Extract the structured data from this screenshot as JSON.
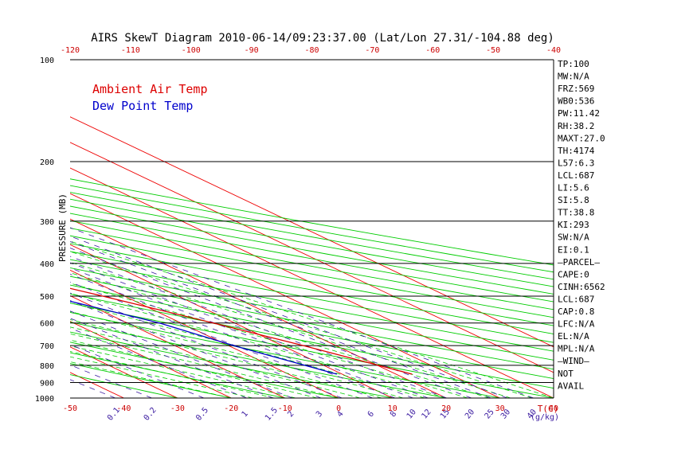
{
  "chart_data": {
    "type": "line",
    "title": "AIRS SkewT Diagram 2010-06-14/09:23:37.00 (Lat/Lon 27.31/-104.88 deg)",
    "ylabel": "PRESSURE (MB)",
    "xlabel": "T(C)",
    "mixing_ratio_unit": "(g/kg)",
    "y_scale": "log",
    "ylim": [
      1000,
      100
    ],
    "xlim_bottom": [
      -50,
      40
    ],
    "top_ticks": [
      -120,
      -110,
      -100,
      -90,
      -80,
      -70,
      -60,
      -50,
      -40
    ],
    "bottom_ticks": [
      -50,
      -40,
      -30,
      -20,
      -10,
      0,
      10,
      20,
      30,
      40
    ],
    "pressure_ticks": [
      100,
      200,
      300,
      400,
      500,
      600,
      700,
      800,
      900,
      1000
    ],
    "mixing_ratio_labels": [
      "0.1",
      "0.2",
      "0.5",
      "1",
      "1.5",
      "2",
      "3",
      "4",
      "6",
      "8",
      "10",
      "12",
      "15",
      "20",
      "25",
      "30",
      "40"
    ],
    "legend": [
      "Ambient Air Temp",
      "Dew Point Temp"
    ],
    "legend_placement": "top-left",
    "colors": {
      "temperature": "#dd0000",
      "dewpoint": "#0000cc",
      "isotherm": "#ee0000",
      "dry_adiabat": "#00cc00",
      "moist_adiabat": "#00cc00",
      "mixing_ratio": "#3a1aa0",
      "axis_labels": "#cc0000",
      "text": "#000000"
    },
    "series": [
      {
        "name": "Ambient Air Temp",
        "points": [
          {
            "p": 850,
            "t": 23
          },
          {
            "p": 700,
            "t": 14
          },
          {
            "p": 600,
            "t": 6
          },
          {
            "p": 500,
            "t": -4
          },
          {
            "p": 400,
            "t": -17
          },
          {
            "p": 300,
            "t": -34
          },
          {
            "p": 250,
            "t": -44
          },
          {
            "p": 200,
            "t": -55
          },
          {
            "p": 160,
            "t": -63
          },
          {
            "p": 140,
            "t": -70
          },
          {
            "p": 120,
            "t": -64
          },
          {
            "p": 100,
            "t": -57
          }
        ]
      },
      {
        "name": "Dew Point Temp",
        "points": [
          {
            "p": 850,
            "t": 9
          },
          {
            "p": 700,
            "t": 1
          },
          {
            "p": 600,
            "t": -4
          },
          {
            "p": 500,
            "t": -14
          },
          {
            "p": 400,
            "t": -27
          },
          {
            "p": 300,
            "t": -41
          },
          {
            "p": 200,
            "t": -60
          },
          {
            "p": 150,
            "t": -75
          },
          {
            "p": 120,
            "t": -83
          },
          {
            "p": 100,
            "t": -87
          }
        ]
      }
    ]
  },
  "stats": [
    "TP:100",
    "MW:N/A",
    "FRZ:569",
    "WB0:536",
    "PW:11.42",
    "RH:38.2",
    "MAXT:27.0",
    "TH:4174",
    "L57:6.3",
    "LCL:687",
    "LI:5.6",
    "SI:5.8",
    "TT:38.8",
    "KI:293",
    "SW:N/A",
    "EI:0.1",
    "—PARCEL—",
    "CAPE:0",
    "CINH:6562",
    "LCL:687",
    "CAP:0.8",
    "LFC:N/A",
    "EL:N/A",
    "MPL:N/A",
    "—WIND—",
    "NOT",
    "AVAIL"
  ]
}
